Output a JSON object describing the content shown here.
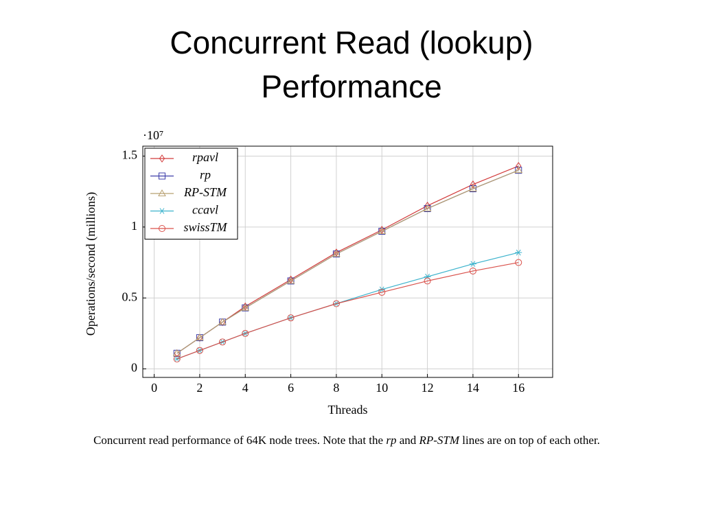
{
  "chart_data": {
    "type": "line",
    "title": "Concurrent Read (lookup) Performance",
    "x_label": "Threads",
    "y_label": "Operations/second (millions)",
    "y_multiplier": "·10⁷",
    "x": [
      1,
      2,
      3,
      4,
      6,
      8,
      10,
      12,
      14,
      16
    ],
    "xlim": [
      -0.5,
      17.5
    ],
    "ylim": [
      -0.06,
      1.57
    ],
    "xticks": [
      0,
      2,
      4,
      6,
      8,
      10,
      12,
      14,
      16
    ],
    "yticks": [
      0,
      0.5,
      1,
      1.5
    ],
    "grid": true,
    "legend": "upper-left",
    "series": [
      {
        "name": "rpavl",
        "color": "#d23a3a",
        "marker": "diamond",
        "values": [
          0.11,
          0.22,
          0.33,
          0.44,
          0.63,
          0.82,
          0.98,
          1.15,
          1.3,
          1.43
        ]
      },
      {
        "name": "rp",
        "color": "#3c3ca8",
        "marker": "square",
        "values": [
          0.11,
          0.22,
          0.33,
          0.43,
          0.62,
          0.81,
          0.97,
          1.13,
          1.27,
          1.4
        ]
      },
      {
        "name": "RP-STM",
        "color": "#b8a070",
        "marker": "triangle",
        "values": [
          0.11,
          0.22,
          0.33,
          0.43,
          0.62,
          0.81,
          0.97,
          1.13,
          1.27,
          1.4
        ]
      },
      {
        "name": "ccavl",
        "color": "#3ab2cc",
        "marker": "star",
        "values": [
          0.07,
          0.13,
          0.19,
          0.25,
          0.36,
          0.46,
          0.56,
          0.65,
          0.74,
          0.82
        ]
      },
      {
        "name": "swissTM",
        "color": "#d9504a",
        "marker": "circle",
        "values": [
          0.07,
          0.13,
          0.19,
          0.25,
          0.36,
          0.46,
          0.54,
          0.62,
          0.69,
          0.75
        ]
      }
    ],
    "caption": [
      "Concurrent read performance of 64K node trees. Note that the ",
      "rp",
      " and ",
      "RP-STM",
      " lines are on top of each other."
    ]
  }
}
